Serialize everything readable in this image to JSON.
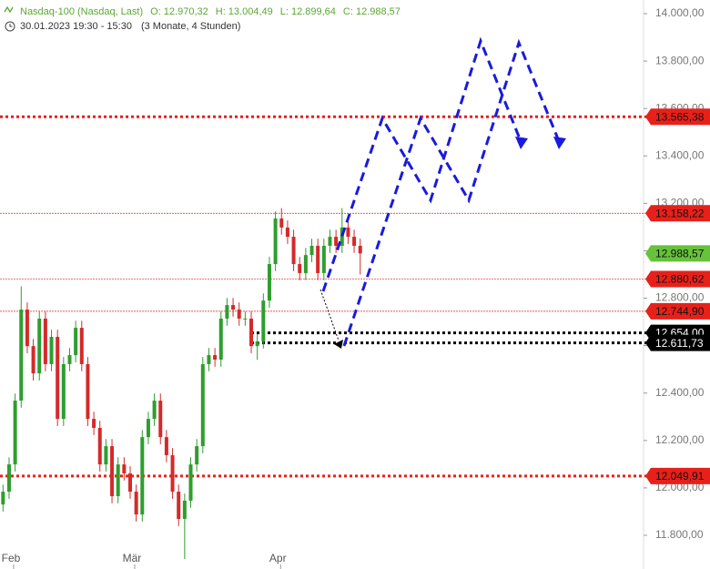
{
  "chart_data": {
    "type": "candlestick",
    "title": "Nasdaq-100 (Nasdaq, Last)",
    "ohlc_labels": [
      "O: 12.970,32",
      "H: 13.004,49",
      "L: 12.899,64",
      "C: 12.988,57"
    ],
    "subtitle": "30.01.2023 19:30 - 15:30",
    "period": "(3 Monate, 4 Stunden)",
    "up_color": "#2e9e2e",
    "down_color": "#d42a2a",
    "x": [
      0,
      1,
      2,
      3,
      4,
      5,
      6,
      7,
      8,
      9,
      10,
      11,
      12,
      13,
      14,
      15,
      16,
      17,
      18,
      19,
      20,
      21,
      22,
      23,
      24,
      25,
      26,
      27,
      28,
      29,
      30,
      31,
      32,
      33,
      34,
      35,
      36,
      37,
      38,
      39,
      40,
      41,
      42,
      43,
      44,
      45,
      46,
      47,
      48,
      49,
      50,
      51,
      52,
      53,
      54,
      55,
      56,
      57,
      58,
      59
    ],
    "open": [
      11930,
      11984,
      12099,
      12368,
      12752,
      12598,
      12483,
      12714,
      12522,
      12637,
      12291,
      12522,
      12560,
      12675,
      12522,
      12291,
      12253,
      12099,
      12176,
      11965,
      12099,
      12061,
      11984,
      11888,
      12214,
      12291,
      12368,
      12214,
      12138,
      11984,
      11869,
      11946,
      12099,
      12176,
      12522,
      12560,
      12541,
      12714,
      12771,
      12752,
      12714,
      12714,
      12598,
      12618,
      12790,
      12944,
      13136,
      13098,
      13059,
      12944,
      12906,
      12982,
      13021,
      12906,
      13021,
      13059,
      13021,
      13098,
      13059,
      13021
    ],
    "high": [
      12014,
      12129,
      12398,
      12850,
      12782,
      12628,
      12744,
      12744,
      12667,
      12667,
      12552,
      12590,
      12705,
      12705,
      12552,
      12321,
      12283,
      12206,
      12206,
      12129,
      12129,
      12091,
      12014,
      12244,
      12321,
      12398,
      12398,
      12244,
      12168,
      12014,
      11976,
      12129,
      12206,
      12552,
      12590,
      12590,
      12744,
      12801,
      12801,
      12782,
      12744,
      12744,
      12648,
      12820,
      12974,
      13166,
      13180,
      13128,
      13089,
      12974,
      13012,
      13051,
      13051,
      13051,
      13089,
      13089,
      13180,
      13128,
      13089,
      13051
    ],
    "low": [
      11900,
      11954,
      12069,
      12338,
      12568,
      12453,
      12453,
      12492,
      12492,
      12261,
      12261,
      12492,
      12530,
      12492,
      12261,
      12223,
      12069,
      12069,
      11935,
      11935,
      12031,
      11954,
      11858,
      11858,
      12184,
      12261,
      12184,
      12108,
      11954,
      11839,
      11700,
      11916,
      12069,
      12146,
      12492,
      12511,
      12511,
      12684,
      12722,
      12684,
      12684,
      12568,
      12540,
      12588,
      12760,
      12914,
      13068,
      13029,
      12914,
      12876,
      12876,
      12952,
      12876,
      12876,
      12991,
      12991,
      12991,
      13029,
      12991,
      12900
    ],
    "close": [
      11984,
      12099,
      12368,
      12752,
      12598,
      12483,
      12714,
      12522,
      12637,
      12291,
      12522,
      12560,
      12675,
      12522,
      12291,
      12253,
      12099,
      12176,
      11965,
      12099,
      12061,
      11984,
      11888,
      12214,
      12291,
      12368,
      12214,
      12138,
      11984,
      11869,
      11946,
      12099,
      12176,
      12522,
      12560,
      12541,
      12714,
      12771,
      12752,
      12714,
      12714,
      12598,
      12618,
      12790,
      12944,
      13136,
      13098,
      13059,
      12944,
      12906,
      12982,
      13021,
      12906,
      13021,
      13059,
      13021,
      13098,
      13059,
      13021,
      12989
    ],
    "xlim": [
      -0.5,
      105.5
    ],
    "xticks": [
      {
        "value": 1.3,
        "label": "Feb"
      },
      {
        "value": 21.3,
        "label": "Mär"
      },
      {
        "value": 45.4,
        "label": "Apr"
      }
    ],
    "ylim": [
      11715,
      14050
    ],
    "yticks": [
      {
        "value": 11800,
        "label": "11.800,00"
      },
      {
        "value": 12000,
        "label": "12.000,00"
      },
      {
        "value": 12200,
        "label": "12.200,00"
      },
      {
        "value": 12400,
        "label": "12.400,00"
      },
      {
        "value": 12600,
        "label": "12.600,00"
      },
      {
        "value": 12800,
        "label": "12.800,00"
      },
      {
        "value": 13000,
        "label": "13.000,00"
      },
      {
        "value": 13200,
        "label": "13.200,00"
      },
      {
        "value": 13400,
        "label": "13.400,00"
      },
      {
        "value": 13600,
        "label": "13.600,00"
      },
      {
        "value": 13800,
        "label": "13.800,00"
      },
      {
        "value": 14000,
        "label": "14.000,00"
      }
    ],
    "levels": [
      {
        "value": 13565.38,
        "label": "13.565,38",
        "color": "#e8201a",
        "style": "thick"
      },
      {
        "value": 13158.22,
        "label": "13.158,22",
        "color": "#e8201a",
        "style": "thin"
      },
      {
        "value": 12988.57,
        "label": "12.988,57",
        "color": "#66c23a",
        "style": "none"
      },
      {
        "value": 12880.62,
        "label": "12.880,62",
        "color": "#e8201a",
        "style": "thin"
      },
      {
        "value": 12744.9,
        "label": "12.744,90",
        "color": "#e8201a",
        "style": "thin"
      },
      {
        "value": 12654.0,
        "label": "12.654,00",
        "color": "#000000",
        "style": "thick",
        "x_start": 41
      },
      {
        "value": 12611.73,
        "label": "12.611,73",
        "color": "#000000",
        "style": "thick",
        "x_start": 41
      },
      {
        "value": 12049.91,
        "label": "12.049,91",
        "color": "#e8201a",
        "style": "thick"
      }
    ]
  }
}
